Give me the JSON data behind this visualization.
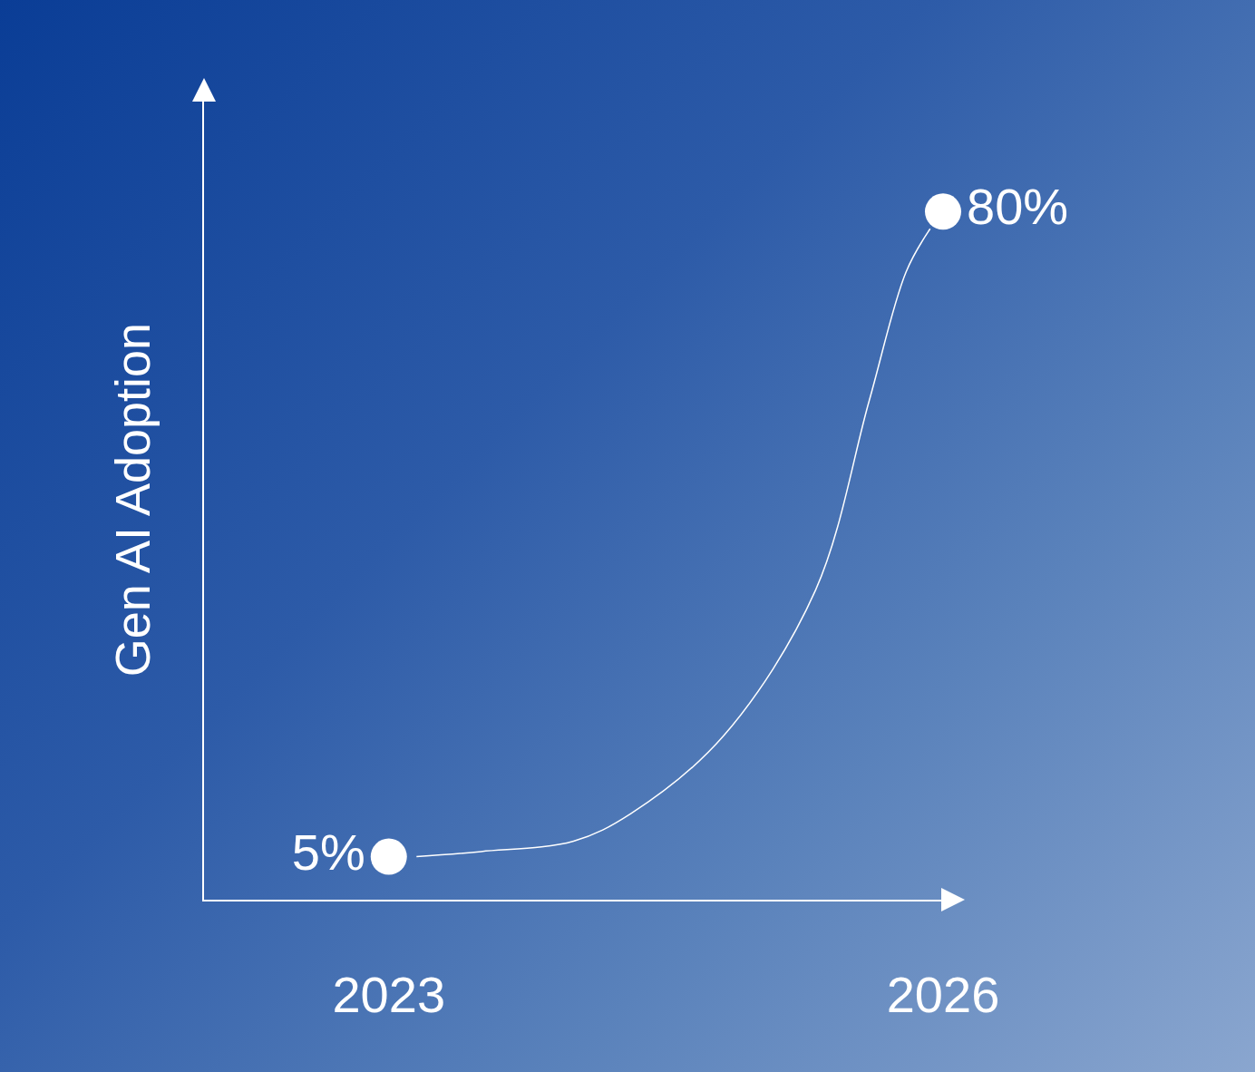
{
  "chart_data": {
    "type": "line",
    "ylabel": "Gen AI Adoption",
    "xlim": [
      2022,
      2026
    ],
    "xticks": [
      2023,
      2026
    ],
    "ylim": [
      0,
      93
    ],
    "series": [
      {
        "type": "line",
        "color": "#ffffff",
        "marker": "none",
        "x": [
          2023.15,
          2023.5,
          2024,
          2024.31,
          2024.81,
          2025.31,
          2025.6,
          2025.8,
          2025.93
        ],
        "values": [
          5,
          5.6,
          6.8,
          10,
          19,
          36,
          58,
          73,
          78
        ]
      },
      {
        "type": "scatter",
        "color": "#ffffff",
        "marker": "circle",
        "x": [
          2023,
          2026
        ],
        "values": [
          5,
          80
        ],
        "value_labels": [
          "5%",
          "80%"
        ]
      }
    ]
  }
}
